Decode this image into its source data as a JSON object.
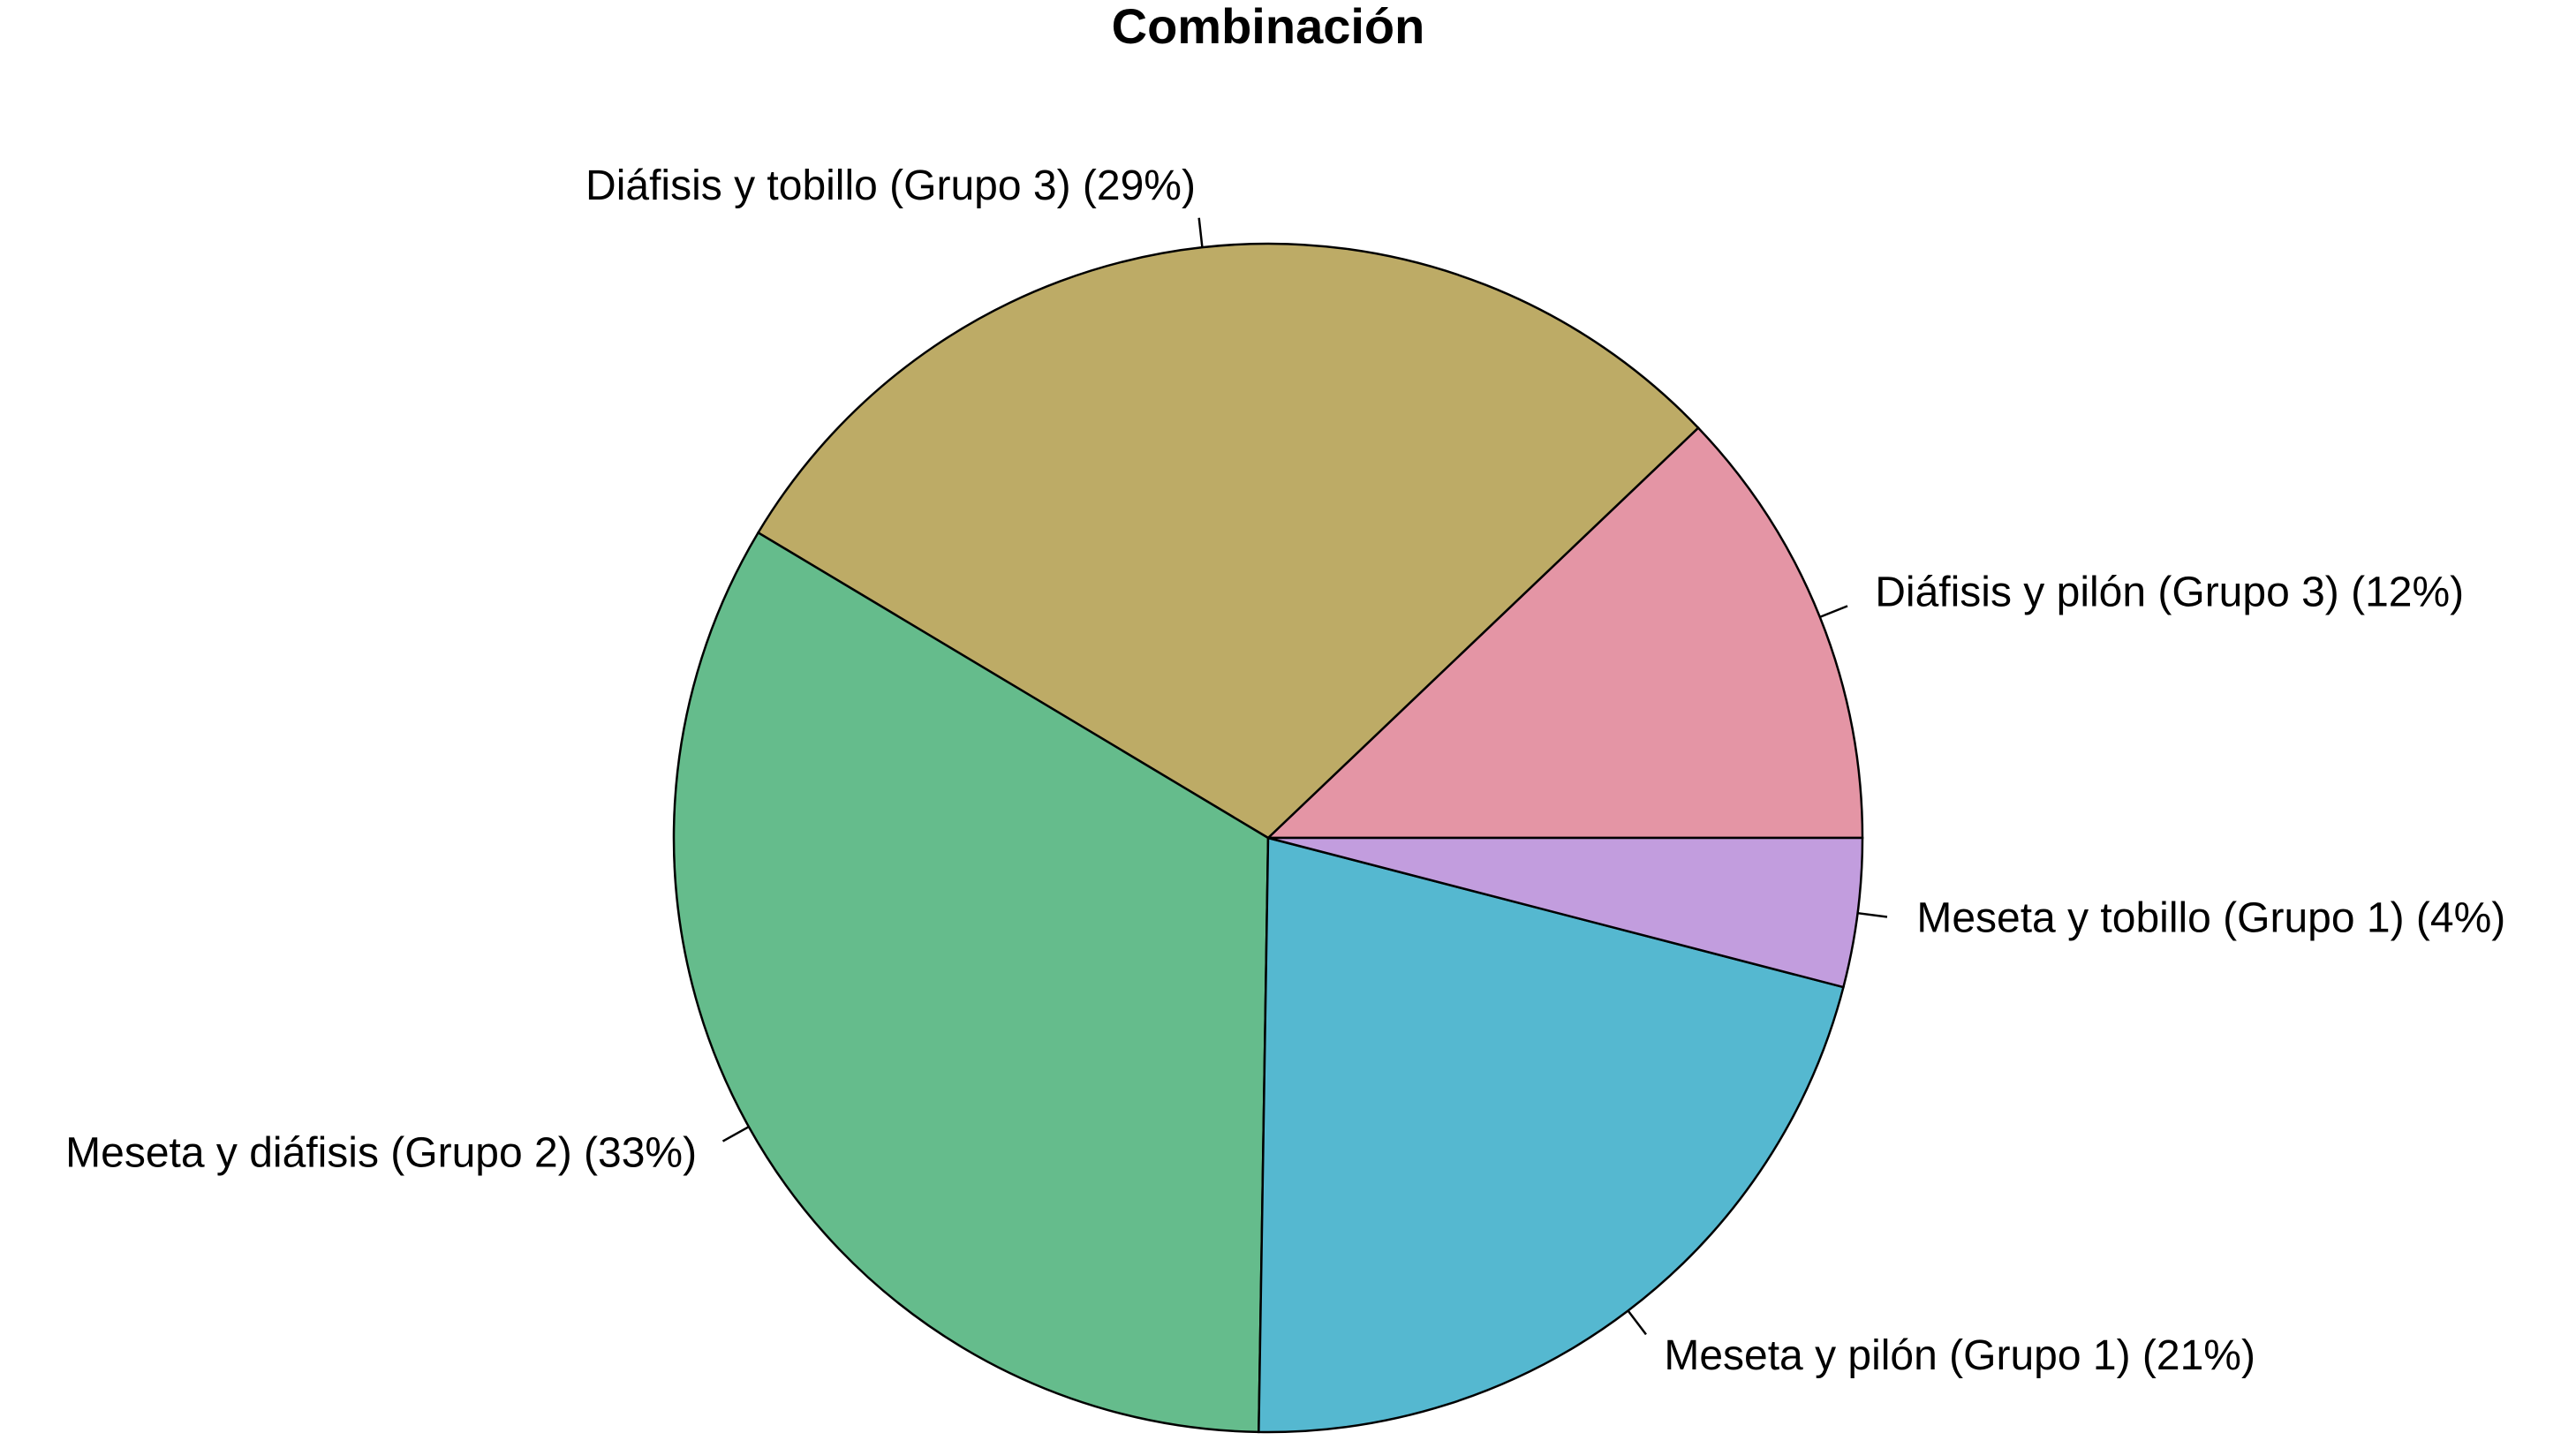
{
  "chart_data": {
    "type": "pie",
    "title": "Combinación",
    "categories": [
      "Diáfisis y pilón (Grupo 3) (12%)",
      "Diáfisis y tobillo (Grupo 3) (29%)",
      "Meseta y diáfisis (Grupo 2) (33%)",
      "Meseta y pilón (Grupo 1) (21%)",
      "Meseta y tobillo (Grupo 1) (4%)"
    ],
    "values": [
      12,
      29,
      33,
      21,
      4
    ],
    "colors": [
      "#E495A5",
      "#BDAB66",
      "#65BC8C",
      "#55B8D0",
      "#C29DDE"
    ]
  }
}
